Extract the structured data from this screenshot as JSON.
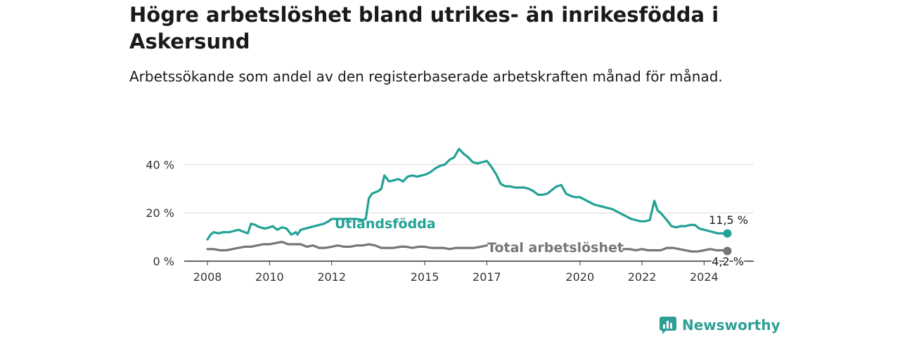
{
  "header": {
    "title": "Högre arbetslöshet bland utrikes- än inrikesfödda i Askersund",
    "subtitle": "Arbetssökande som andel av den registerbaserade arbetskraften månad för månad."
  },
  "brand": {
    "name": "Newsworthy",
    "color": "#2f9e94"
  },
  "chart_data": {
    "type": "line",
    "x_unit": "year",
    "y_unit": "%",
    "ylim": [
      0,
      50
    ],
    "y_ticks": [
      0,
      20,
      40
    ],
    "y_tick_labels": [
      "0 %",
      "20 %",
      "40 %"
    ],
    "x_ticks": [
      2008,
      2010,
      2012,
      2015,
      2017,
      2020,
      2022,
      2024
    ],
    "x_tick_labels": [
      "2008",
      "2010",
      "2012",
      "2015",
      "2017",
      "2020",
      "2022",
      "2024"
    ],
    "grid": "horizontal",
    "series": [
      {
        "name": "Utlandsfödda",
        "color": "#22a295",
        "end_label": "11,5 %",
        "x": [
          2008.0,
          2008.1,
          2008.2,
          2008.35,
          2008.5,
          2008.7,
          2008.85,
          2009.0,
          2009.2,
          2009.3,
          2009.4,
          2009.55,
          2009.6,
          2009.7,
          2009.85,
          2010.0,
          2010.1,
          2010.25,
          2010.4,
          2010.55,
          2010.7,
          2010.85,
          2010.9,
          2011.0,
          2011.15,
          2011.3,
          2011.45,
          2011.6,
          2011.75,
          2011.9,
          2012.0,
          2012.8,
          2013.0,
          2013.1,
          2013.2,
          2013.3,
          2013.4,
          2013.5,
          2013.6,
          2013.7,
          2013.85,
          2014.0,
          2014.15,
          2014.3,
          2014.45,
          2014.6,
          2014.75,
          2014.9,
          2015.05,
          2015.2,
          2015.35,
          2015.5,
          2015.65,
          2015.8,
          2015.95,
          2016.1,
          2016.25,
          2016.4,
          2016.55,
          2016.7,
          2016.85,
          2017.0,
          2017.15,
          2017.3,
          2017.45,
          2017.6,
          2017.75,
          2017.9,
          2018.05,
          2018.2,
          2018.35,
          2018.5,
          2018.65,
          2018.8,
          2018.95,
          2019.1,
          2019.25,
          2019.4,
          2019.55,
          2019.7,
          2019.85,
          2020.0,
          2020.15,
          2020.3,
          2020.45,
          2020.6,
          2020.75,
          2020.9,
          2021.05,
          2021.2,
          2021.35,
          2021.5,
          2021.65,
          2021.8,
          2021.95,
          2022.1,
          2022.25,
          2022.4,
          2022.5,
          2022.6,
          2022.7,
          2022.8,
          2022.95,
          2023.1,
          2023.25,
          2023.4,
          2023.55,
          2023.7,
          2023.85,
          2024.0,
          2024.15,
          2024.3,
          2024.45,
          2024.6,
          2024.75
        ],
        "y": [
          9,
          11,
          12,
          11.5,
          12,
          12,
          12.5,
          13,
          12,
          11.5,
          15.5,
          15,
          14.5,
          14,
          13.5,
          14,
          14.5,
          13,
          14,
          13.5,
          11,
          12,
          11,
          13,
          13.5,
          14,
          14.5,
          15,
          15.5,
          16.5,
          17.5,
          17.5,
          17,
          17.5,
          26,
          28,
          28.5,
          29,
          30,
          35.5,
          33,
          33.5,
          34,
          33,
          35,
          35.5,
          35,
          35.5,
          36,
          37,
          38.5,
          39.5,
          40,
          42,
          43,
          46.5,
          44.5,
          43,
          41,
          40.5,
          41,
          41.5,
          39,
          36,
          32,
          31,
          31,
          30.5,
          30.5,
          30.5,
          30,
          29,
          27.5,
          27.5,
          28,
          29.5,
          31,
          31.5,
          28,
          27,
          26.5,
          26.5,
          25.5,
          24.5,
          23.5,
          23,
          22.5,
          22,
          21.5,
          20.5,
          19.5,
          18.5,
          17.5,
          17,
          16.5,
          16.5,
          17,
          25,
          21,
          20,
          18.5,
          17,
          14.5,
          14,
          14.5,
          14.5,
          15,
          15,
          13.5,
          13,
          12.5,
          12,
          11.5,
          11.5,
          11.5
        ]
      },
      {
        "name": "Total arbetslöshet",
        "color": "#767676",
        "end_label": "4,2 %",
        "x": [
          2008.0,
          2008.2,
          2008.4,
          2008.6,
          2008.8,
          2009.0,
          2009.2,
          2009.4,
          2009.6,
          2009.8,
          2010.0,
          2010.2,
          2010.4,
          2010.6,
          2010.8,
          2011.0,
          2011.2,
          2011.4,
          2011.6,
          2011.8,
          2012.0,
          2012.2,
          2012.4,
          2012.6,
          2012.8,
          2013.0,
          2013.2,
          2013.4,
          2013.6,
          2013.8,
          2014.0,
          2014.2,
          2014.4,
          2014.6,
          2014.8,
          2015.0,
          2015.2,
          2015.4,
          2015.6,
          2015.8,
          2016.0,
          2016.2,
          2016.4,
          2016.6,
          2016.8,
          2017.0,
          2017.2,
          2017.4,
          2017.6,
          2017.8,
          2018.0,
          2018.2,
          2018.4,
          2018.6,
          2018.8,
          2019.0,
          2019.2,
          2019.4,
          2019.6,
          2019.8,
          2020.0,
          2020.2,
          2020.4,
          2020.6,
          2020.8,
          2021.0,
          2021.2,
          2021.4,
          2021.6,
          2021.8,
          2022.0,
          2022.2,
          2022.4,
          2022.6,
          2022.8,
          2023.0,
          2023.2,
          2023.4,
          2023.6,
          2023.8,
          2024.0,
          2024.2,
          2024.4,
          2024.6,
          2024.75
        ],
        "y": [
          5,
          5,
          4.5,
          4.5,
          5,
          5.5,
          6,
          6,
          6.5,
          7,
          7,
          7.5,
          8,
          7,
          7,
          7,
          6,
          6.5,
          5.5,
          5.5,
          6,
          6.5,
          6,
          6,
          6.5,
          6.5,
          7,
          6.5,
          5.5,
          5.5,
          5.5,
          6,
          6,
          5.5,
          6,
          6,
          5.5,
          5.5,
          5.5,
          5,
          5.5,
          5.5,
          5.5,
          5.5,
          6,
          6.5,
          6.5,
          6.5,
          6,
          6,
          6,
          5.5,
          5.5,
          5.5,
          5,
          5.5,
          5.5,
          5.5,
          6,
          6,
          6,
          6,
          5.5,
          5.5,
          5.5,
          5,
          5,
          5,
          5,
          4.5,
          5,
          4.5,
          4.5,
          4.5,
          5.5,
          5.5,
          5,
          4.5,
          4,
          4,
          4.5,
          5,
          4.5,
          4.5,
          4.2
        ]
      }
    ]
  }
}
